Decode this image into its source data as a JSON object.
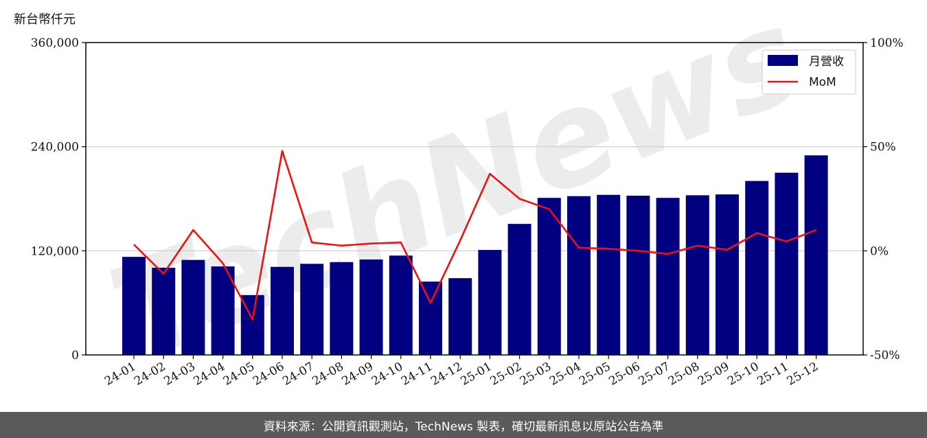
{
  "chart_data": {
    "type": "bar",
    "unit_label": "新台幣仟元",
    "categories": [
      "24-01",
      "24-02",
      "24-03",
      "24-04",
      "24-05",
      "24-06",
      "24-07",
      "24-08",
      "24-09",
      "24-10",
      "24-11",
      "24-12",
      "25-01",
      "25-02",
      "25-03",
      "25-04",
      "25-05",
      "25-06",
      "25-07",
      "25-08",
      "25-09",
      "25-10",
      "25-11",
      "25-12"
    ],
    "series": [
      {
        "name": "月營收",
        "axis": "left",
        "color": "#000080",
        "values": [
          113000,
          100500,
          109500,
          102000,
          69000,
          101500,
          105000,
          107000,
          110000,
          114500,
          84500,
          88500,
          121000,
          151000,
          181000,
          183000,
          184500,
          183500,
          181000,
          184000,
          185000,
          200500,
          210000,
          230000
        ]
      },
      {
        "name": "MoM",
        "axis": "right",
        "color": "#ee1111",
        "values": [
          3,
          -11,
          10,
          -6,
          -33,
          48,
          4,
          2.5,
          3.5,
          4,
          -25,
          5,
          37,
          25,
          20,
          1.5,
          1,
          0,
          -1.5,
          2.5,
          0.5,
          8.5,
          4.5,
          10
        ]
      }
    ],
    "y_left": {
      "min": 0,
      "max": 360000,
      "ticks": [
        0,
        120000,
        240000,
        360000
      ],
      "tick_labels": [
        "0",
        "120,000",
        "240,000",
        "360,000"
      ]
    },
    "y_right": {
      "min": -50,
      "max": 100,
      "ticks": [
        -50,
        0,
        50,
        100
      ],
      "tick_labels": [
        "-50%",
        "0%",
        "50%",
        "100%"
      ]
    },
    "grid": "horizontal",
    "legend_position": "top-right"
  },
  "watermark": "TechNews",
  "footer_text": "資料來源：公開資訊觀測站，TechNews 製表，確切最新訊息以原站公告為準"
}
